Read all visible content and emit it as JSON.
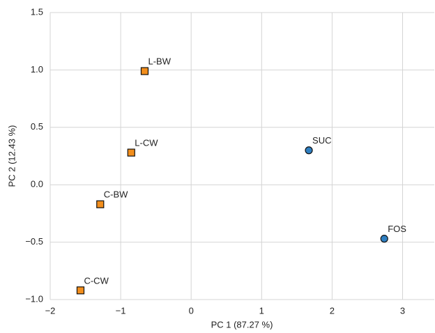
{
  "chart_data": {
    "type": "scatter",
    "xlabel": "PC 1 (87.27 %)",
    "ylabel": "PC 2 (12.43 %)",
    "xlim": [
      -2,
      3.45
    ],
    "ylim": [
      -1,
      1.5
    ],
    "xticks": [
      {
        "value": -2,
        "label": "−2"
      },
      {
        "value": -1,
        "label": "−1"
      },
      0,
      1,
      2,
      3
    ],
    "yticks": [
      {
        "value": -1,
        "label": "−1.0"
      },
      {
        "value": -0.5,
        "label": "−0.5"
      },
      {
        "value": 0,
        "label": "0.0"
      },
      0.5,
      {
        "value": 1,
        "label": "1.0"
      },
      1.5
    ],
    "grid": true,
    "series": [
      {
        "color": "#f28e1c",
        "marker": "square",
        "x": [
          -0.66,
          -0.85,
          -1.29,
          -1.57
        ],
        "values": [
          0.99,
          0.28,
          -0.17,
          -0.92
        ],
        "labels": [
          "L-BW",
          "L-CW",
          "C-BW",
          "C-CW"
        ]
      },
      {
        "color": "#2f7fc1",
        "marker": "circle",
        "x": [
          1.67,
          2.74
        ],
        "values": [
          0.3,
          -0.47
        ],
        "labels": [
          "SUC",
          "FOS"
        ]
      }
    ]
  }
}
